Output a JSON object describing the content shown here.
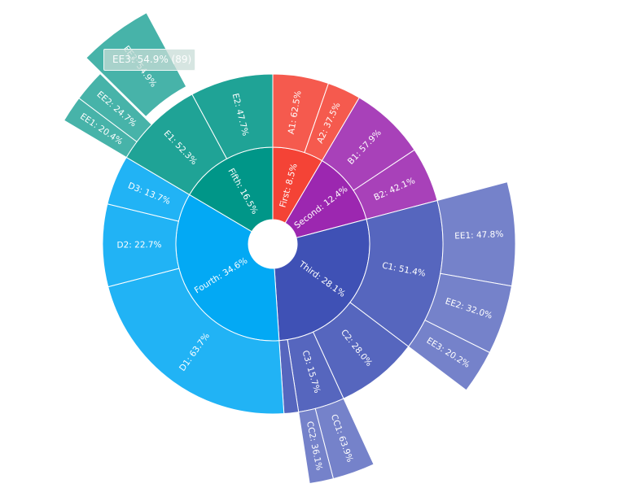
{
  "chart_data": {
    "type": "sunburst",
    "colors": {
      "First": "#f44336",
      "Second": "#9c27b0",
      "Third": "#3f51b5",
      "Fourth": "#03a9f4",
      "Fifth": "#009688"
    },
    "label_suffix": "%",
    "nodes": [
      {
        "name": "First",
        "value": 8.5,
        "children": [
          {
            "name": "A1",
            "value": 62.5
          },
          {
            "name": "A2",
            "value": 37.5
          }
        ]
      },
      {
        "name": "Second",
        "value": 12.4,
        "children": [
          {
            "name": "B1",
            "value": 57.9
          },
          {
            "name": "B2",
            "value": 42.1
          }
        ]
      },
      {
        "name": "Third",
        "value": 28.1,
        "children": [
          {
            "name": "C1",
            "value": 51.4,
            "children": [
              {
                "name": "EE1",
                "value": 47.8
              },
              {
                "name": "EE2",
                "value": 32.0
              },
              {
                "name": "EE3",
                "value": 20.2
              }
            ]
          },
          {
            "name": "C2",
            "value": 28.0
          },
          {
            "name": "C3",
            "value": 15.7,
            "children": [
              {
                "name": "CC1",
                "value": 63.9
              },
              {
                "name": "CC2",
                "value": 36.1
              }
            ]
          },
          {
            "name": "",
            "value": 4.9
          }
        ]
      },
      {
        "name": "Fourth",
        "value": 34.6,
        "children": [
          {
            "name": "D1",
            "value": 63.7
          },
          {
            "name": "D2",
            "value": 22.7
          },
          {
            "name": "D3",
            "value": 13.7
          }
        ]
      },
      {
        "name": "Fifth",
        "value": 16.5,
        "children": [
          {
            "name": "E1",
            "value": 52.3,
            "children": [
              {
                "name": "EE1",
                "value": 20.4
              },
              {
                "name": "EE2",
                "value": 24.7
              },
              {
                "name": "EE3",
                "value": 54.9,
                "highlighted": true
              }
            ]
          },
          {
            "name": "E2",
            "value": 47.7
          }
        ]
      }
    ]
  },
  "tooltip": {
    "text": "EE3: 54.9% (89)"
  }
}
